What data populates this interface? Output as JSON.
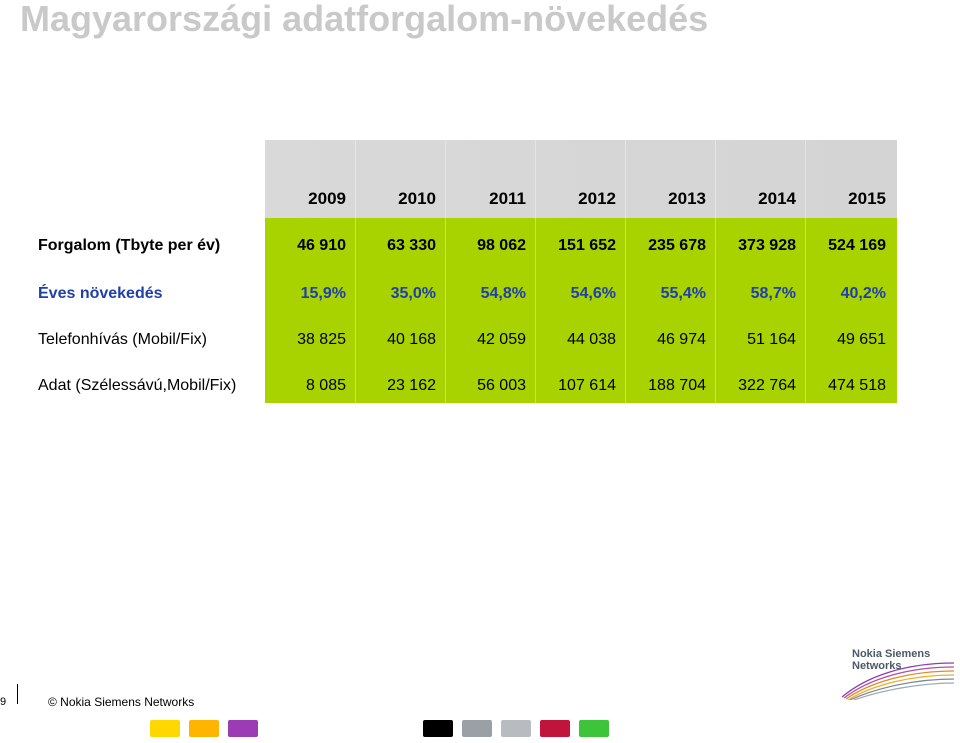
{
  "title": "Magyarországi adatforgalom-növekedés",
  "years": [
    "2009",
    "2010",
    "2011",
    "2012",
    "2013",
    "2014",
    "2015"
  ],
  "rows": [
    {
      "label": "Forgalom (Tbyte per év)",
      "values": [
        "46 910",
        "63 330",
        "98 062",
        "151 652",
        "235 678",
        "373 928",
        "524 169"
      ],
      "style": "bold"
    },
    {
      "label": "Éves növekedés",
      "values": [
        "15,9%",
        "35,0%",
        "54,8%",
        "54,6%",
        "55,4%",
        "58,7%",
        "40,2%"
      ],
      "style": "blue"
    },
    {
      "label": "Telefonhívás (Mobil/Fix)",
      "values": [
        "38 825",
        "40 168",
        "42 059",
        "44 038",
        "46 974",
        "51 164",
        "49 651"
      ],
      "style": "normal"
    },
    {
      "label": "Adat (Szélessávú,Mobil/Fix)",
      "values": [
        "8 085",
        "23 162",
        "56 003",
        "107 614",
        "188 704",
        "322 764",
        "474 518"
      ],
      "style": "normal"
    }
  ],
  "footer": {
    "page_number": "9",
    "copyright": "© Nokia Siemens Networks"
  },
  "logo": {
    "line1": "Nokia Siemens",
    "line2": "Networks"
  },
  "swatch_colors": [
    "#ffd800",
    "#ffb400",
    "#9b3cb4",
    "#000000",
    "#9aa0a6",
    "#b8bcc0",
    "#c0143c",
    "#3ec43a"
  ]
}
